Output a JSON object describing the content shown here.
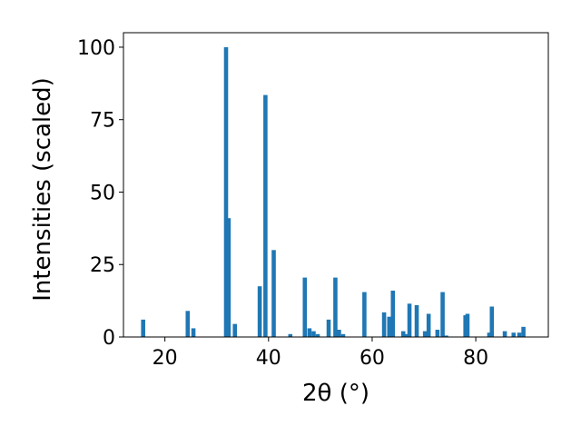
{
  "chart_data": {
    "type": "bar",
    "xlabel": "2θ (°)",
    "ylabel": "Intensities (scaled)",
    "xlim": [
      12,
      94
    ],
    "ylim": [
      0,
      105
    ],
    "xticks": [
      20,
      40,
      60,
      80
    ],
    "yticks": [
      0,
      25,
      50,
      75,
      100
    ],
    "grid": false,
    "legend": "none",
    "bar_color": "#1f77b4",
    "bar_width": 0.8,
    "x": [
      15.8,
      24.4,
      25.5,
      31.8,
      32.3,
      33.5,
      38.3,
      39.4,
      41.0,
      44.2,
      47.0,
      47.9,
      48.7,
      49.5,
      51.6,
      52.9,
      53.6,
      54.4,
      58.5,
      62.3,
      63.3,
      64.0,
      66.0,
      66.5,
      67.2,
      68.6,
      70.2,
      70.9,
      72.6,
      73.6,
      74.3,
      78.0,
      78.4,
      82.6,
      83.1,
      85.6,
      87.3,
      88.4,
      89.2
    ],
    "values": [
      6,
      9,
      3,
      100,
      41,
      4.5,
      17.5,
      83.5,
      30,
      1,
      20.5,
      3,
      2,
      1,
      6,
      20.5,
      2.5,
      1,
      15.5,
      8.5,
      7,
      16,
      2,
      1,
      11.5,
      11,
      2,
      8,
      2.5,
      15.5,
      0.5,
      7.5,
      8,
      1.5,
      10.5,
      2,
      1.5,
      1.5,
      3.5
    ]
  }
}
